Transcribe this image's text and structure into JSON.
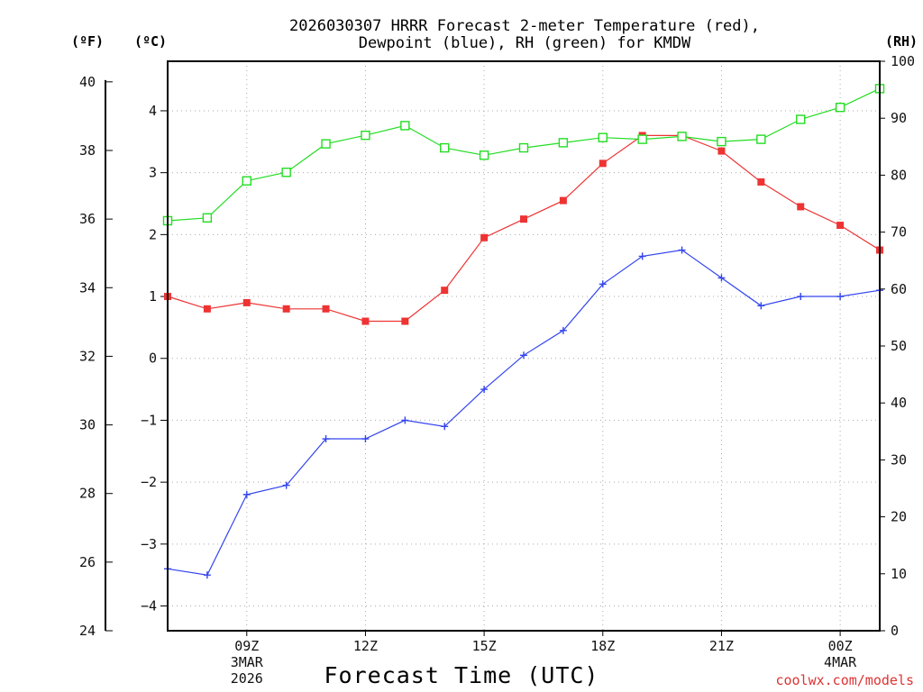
{
  "chart_data": {
    "type": "line",
    "title": [
      "2026030307 HRRR Forecast 2-meter Temperature (red),",
      "Dewpoint (blue), RH (green) for KMDW"
    ],
    "xlabel": "Forecast Time (UTC)",
    "units": {
      "fahrenheit": "(ºF)",
      "celsius": "(ºC)",
      "rh": "(RH)"
    },
    "x_hours": [
      7,
      8,
      9,
      10,
      11,
      12,
      13,
      14,
      15,
      16,
      17,
      18,
      19,
      20,
      21,
      22,
      23,
      24,
      25
    ],
    "xlim": [
      7,
      25
    ],
    "x_ticks": [
      {
        "hour": 9,
        "lines": [
          "09Z",
          "3MAR",
          "2026"
        ]
      },
      {
        "hour": 12,
        "lines": [
          "12Z"
        ]
      },
      {
        "hour": 15,
        "lines": [
          "15Z"
        ]
      },
      {
        "hour": 18,
        "lines": [
          "18Z"
        ]
      },
      {
        "hour": 21,
        "lines": [
          "21Z"
        ]
      },
      {
        "hour": 24,
        "lines": [
          "00Z",
          "4MAR"
        ]
      }
    ],
    "y_celsius": {
      "lim": [
        -4.4,
        4.8
      ],
      "ticks": [
        -4,
        -3,
        -2,
        -1,
        0,
        1,
        2,
        3,
        4
      ]
    },
    "y_fahrenheit": {
      "lim": [
        24,
        40.6
      ],
      "ticks": [
        24,
        26,
        28,
        30,
        32,
        34,
        36,
        38,
        40
      ]
    },
    "y_rh": {
      "lim": [
        0,
        100
      ],
      "ticks": [
        0,
        10,
        20,
        30,
        40,
        50,
        60,
        70,
        80,
        90,
        100
      ]
    },
    "series": [
      {
        "name": "Temperature",
        "color": "#ee3333",
        "axis": "celsius",
        "marker": "filled-square",
        "values": [
          1.0,
          0.8,
          0.9,
          0.8,
          0.8,
          0.6,
          0.6,
          1.1,
          1.95,
          2.25,
          2.55,
          3.15,
          3.6,
          3.6,
          3.35,
          2.85,
          2.45,
          2.15,
          1.75
        ]
      },
      {
        "name": "Dewpoint",
        "color": "#3344ee",
        "axis": "celsius",
        "marker": "plus",
        "values": [
          -3.4,
          -3.5,
          -2.2,
          -2.05,
          -1.3,
          -1.3,
          -1.0,
          -1.1,
          -0.5,
          0.05,
          0.45,
          1.2,
          1.65,
          1.75,
          1.3,
          0.85,
          1.0,
          1.0,
          1.1
        ]
      },
      {
        "name": "RH",
        "color": "#22dd22",
        "axis": "rh",
        "marker": "open-square",
        "values": [
          72,
          72.5,
          79,
          80.5,
          85.5,
          87,
          88.7,
          84.8,
          83.5,
          84.8,
          85.7,
          86.6,
          86.3,
          86.8,
          85.9,
          86.3,
          89.8,
          91.9,
          95.2
        ]
      }
    ]
  },
  "credit": {
    "text": "coolwx.com/models",
    "color": "#dd3333"
  }
}
